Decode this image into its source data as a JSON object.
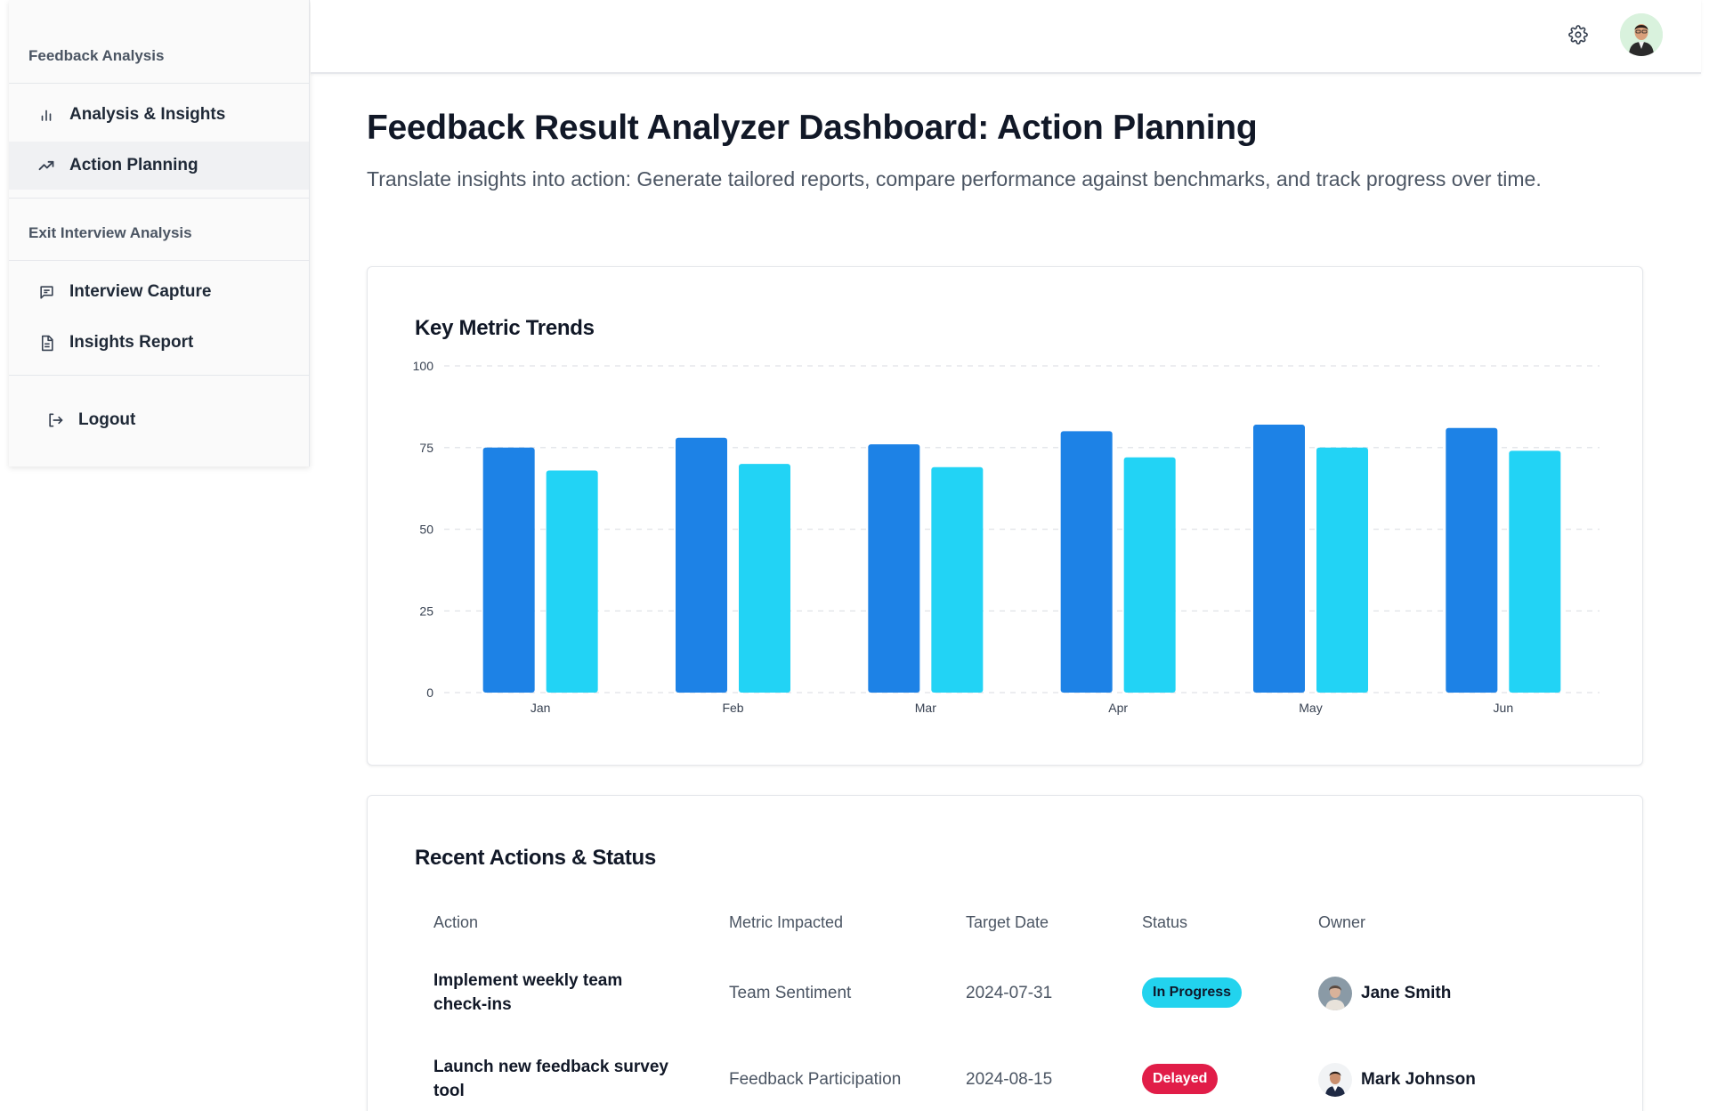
{
  "sidebar": {
    "sections": [
      {
        "title": "Feedback Analysis",
        "items": [
          {
            "label": "Analysis & Insights",
            "icon": "bar-chart-icon",
            "active": false
          },
          {
            "label": "Action Planning",
            "icon": "trending-up-icon",
            "active": true
          }
        ]
      },
      {
        "title": "Exit Interview Analysis",
        "items": [
          {
            "label": "Interview Capture",
            "icon": "message-square-icon",
            "active": false
          },
          {
            "label": "Insights Report",
            "icon": "file-text-icon",
            "active": false
          }
        ]
      }
    ],
    "logout_label": "Logout"
  },
  "header": {
    "settings_icon": "gear-icon",
    "avatar_icon": "user-avatar"
  },
  "page": {
    "title": "Feedback Result Analyzer Dashboard: Action Planning",
    "subtitle": "Translate insights into action: Generate tailored reports, compare performance against benchmarks, and track progress over time."
  },
  "chart_card": {
    "title": "Key Metric Trends"
  },
  "chart_data": {
    "type": "bar",
    "categories": [
      "Jan",
      "Feb",
      "Mar",
      "Apr",
      "May",
      "Jun"
    ],
    "series": [
      {
        "values": [
          75,
          78,
          76,
          80,
          82,
          81
        ],
        "color": "#1d82e6"
      },
      {
        "values": [
          68,
          70,
          69,
          72,
          75,
          74
        ],
        "color": "#22d3f5"
      }
    ],
    "ylim": [
      0,
      100
    ],
    "yticks": [
      0,
      25,
      50,
      75,
      100
    ],
    "grid": true,
    "title": "Key Metric Trends"
  },
  "table_card": {
    "title": "Recent Actions & Status",
    "columns": [
      "Action",
      "Metric Impacted",
      "Target Date",
      "Status",
      "Owner"
    ],
    "rows": [
      {
        "action_line1": "Implement weekly team",
        "action_line2": "check-ins",
        "metric": "Team Sentiment",
        "target_date": "2024-07-31",
        "status": "In Progress",
        "status_color": "#22d3ee",
        "owner": "Jane Smith"
      },
      {
        "action_line1": "Launch new feedback survey",
        "action_line2": "tool",
        "metric": "Feedback Participation",
        "target_date": "2024-08-15",
        "status": "Delayed",
        "status_color": "#e11d48",
        "owner": "Mark Johnson"
      }
    ]
  }
}
